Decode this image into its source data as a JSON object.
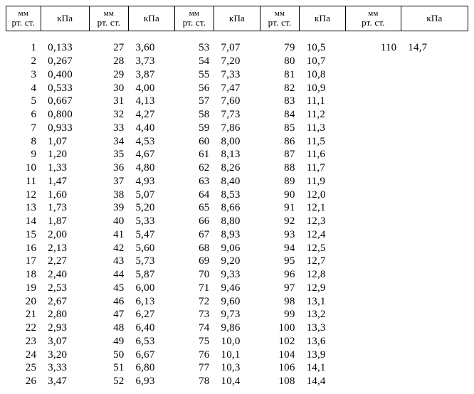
{
  "headers": {
    "mm_line1": "мм",
    "mm_line2": "рт. ст.",
    "kpa": "кПа"
  },
  "columns": [
    {
      "mm": [
        "1",
        "2",
        "3",
        "4",
        "5",
        "6",
        "7",
        "8",
        "9",
        "10",
        "11",
        "12",
        "13",
        "14",
        "15",
        "16",
        "17",
        "18",
        "19",
        "20",
        "21",
        "22",
        "23",
        "24",
        "25",
        "26"
      ],
      "kpa": [
        "0,133",
        "0,267",
        "0,400",
        "0,533",
        "0,667",
        "0,800",
        "0,933",
        "1,07",
        "1,20",
        "1,33",
        "1,47",
        "1,60",
        "1,73",
        "1,87",
        "2,00",
        "2,13",
        "2,27",
        "2,40",
        "2,53",
        "2,67",
        "2,80",
        "2,93",
        "3,07",
        "3,20",
        "3,33",
        "3,47"
      ]
    },
    {
      "mm": [
        "27",
        "28",
        "29",
        "30",
        "31",
        "32",
        "33",
        "34",
        "35",
        "36",
        "37",
        "38",
        "39",
        "40",
        "41",
        "42",
        "43",
        "44",
        "45",
        "46",
        "47",
        "48",
        "49",
        "50",
        "51",
        "52"
      ],
      "kpa": [
        "3,60",
        "3,73",
        "3,87",
        "4,00",
        "4,13",
        "4,27",
        "4,40",
        "4,53",
        "4,67",
        "4,80",
        "4,93",
        "5,07",
        "5,20",
        "5,33",
        "5,47",
        "5,60",
        "5,73",
        "5,87",
        "6,00",
        "6,13",
        "6,27",
        "6,40",
        "6,53",
        "6,67",
        "6,80",
        "6,93"
      ]
    },
    {
      "mm": [
        "53",
        "54",
        "55",
        "56",
        "57",
        "58",
        "59",
        "60",
        "61",
        "62",
        "63",
        "64",
        "65",
        "66",
        "67",
        "68",
        "69",
        "70",
        "71",
        "72",
        "73",
        "74",
        "75",
        "76",
        "77",
        "78"
      ],
      "kpa": [
        "7,07",
        "7,20",
        "7,33",
        "7,47",
        "7,60",
        "7,73",
        "7,86",
        "8,00",
        "8,13",
        "8,26",
        "8,40",
        "8,53",
        "8,66",
        "8,80",
        "8,93",
        "9,06",
        "9,20",
        "9,33",
        "9,46",
        "9,60",
        "9,73",
        "9,86",
        "10,0",
        "10,1",
        "10,3",
        "10,4"
      ]
    },
    {
      "mm": [
        "79",
        "80",
        "81",
        "82",
        "83",
        "84",
        "85",
        "86",
        "87",
        "88",
        "89",
        "90",
        "91",
        "92",
        "93",
        "94",
        "95",
        "96",
        "97",
        "98",
        "99",
        "100",
        "102",
        "104",
        "106",
        "108"
      ],
      "kpa": [
        "10,5",
        "10,7",
        "10,8",
        "10,9",
        "11,1",
        "11,2",
        "11,3",
        "11,5",
        "11,6",
        "11,7",
        "11,9",
        "12,0",
        "12,1",
        "12,3",
        "12,4",
        "12,5",
        "12,7",
        "12,8",
        "12,9",
        "13,1",
        "13,2",
        "13,3",
        "13,6",
        "13,9",
        "14,1",
        "14,4"
      ]
    },
    {
      "mm": [
        "110"
      ],
      "kpa": [
        "14,7"
      ]
    }
  ],
  "layout": {
    "num_pairs": 5,
    "rows": 26,
    "col_widths_pct": [
      7.5,
      10.5,
      8.5,
      10,
      8.5,
      10,
      8.5,
      10,
      12,
      14.5
    ]
  },
  "style": {
    "background": "#ffffff",
    "text_color": "#000000",
    "font_family": "Times New Roman",
    "header_fontsize": 13,
    "body_fontsize": 15
  }
}
